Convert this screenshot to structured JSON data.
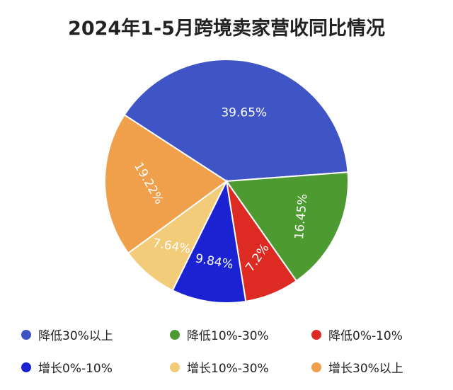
{
  "chart_data": {
    "type": "pie",
    "title": "2024年1-5月跨境卖家营收同比情况",
    "slices": [
      {
        "label": "降低30%以上",
        "value": 39.65,
        "value_label": "39.65%",
        "color": "#3f54c5"
      },
      {
        "label": "降低10%-30%",
        "value": 16.45,
        "value_label": "16.45%",
        "color": "#4d9a30"
      },
      {
        "label": "降低0%-10%",
        "value": 7.2,
        "value_label": "7.2%",
        "color": "#dd2b23"
      },
      {
        "label": "增长0%-10%",
        "value": 9.84,
        "value_label": "9.84%",
        "color": "#1a22d1"
      },
      {
        "label": "增长10%-30%",
        "value": 7.64,
        "value_label": "7.64%",
        "color": "#f3cc7a"
      },
      {
        "label": "增长30%以上",
        "value": 19.22,
        "value_label": "19.22%",
        "color": "#f0a04a"
      }
    ],
    "legend_position": "bottom"
  }
}
